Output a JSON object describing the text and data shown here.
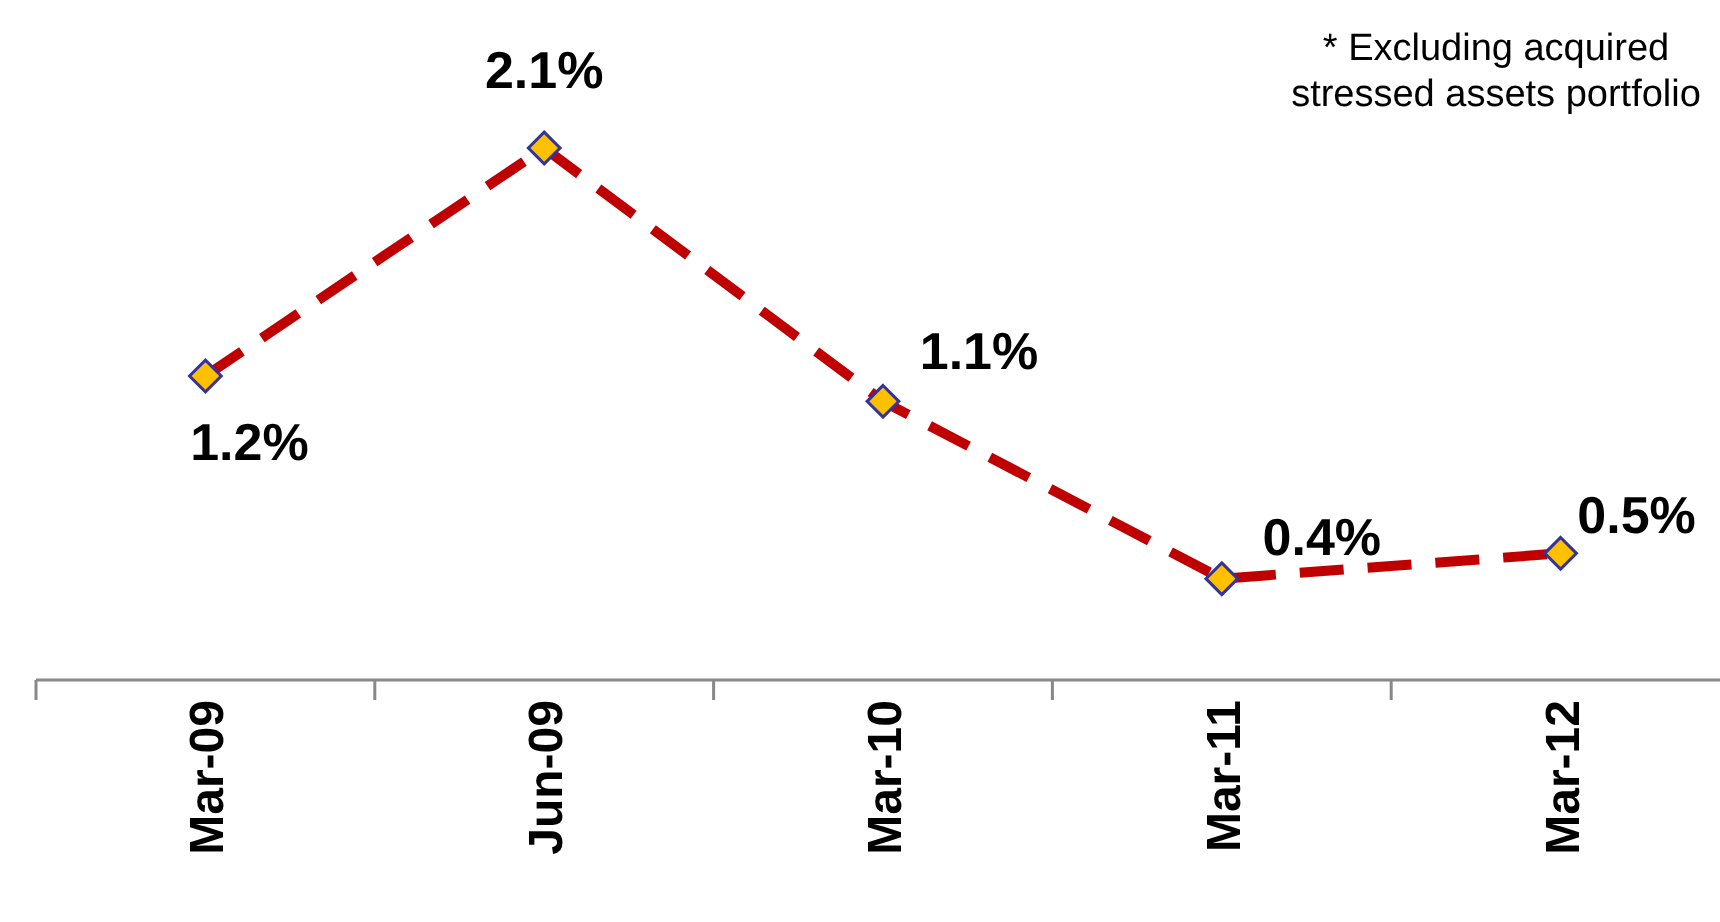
{
  "chart_data": {
    "type": "line",
    "categories": [
      "Mar-09",
      "Jun-09",
      "Mar-10",
      "Mar-11",
      "Mar-12"
    ],
    "series": [
      {
        "color": "#c00000",
        "values": [
          1.2,
          2.1,
          1.1,
          0.4,
          0.5
        ],
        "value_labels": [
          "1.2%",
          "2.1%",
          "1.1%",
          "0.4%",
          "0.5%"
        ]
      }
    ],
    "marker": "diamond",
    "line_style": "dashed",
    "tick_labels": "x",
    "annotations": [
      "* Excluding acquired stressed assets portfolio"
    ]
  }
}
